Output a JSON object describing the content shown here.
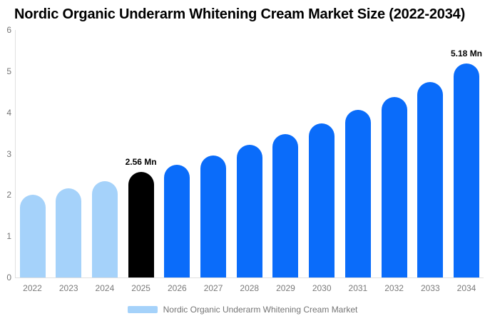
{
  "title": "Nordic Organic Underarm Whitening Cream Market Size (2022-2034)",
  "legend": {
    "label": "Nordic Organic Underarm Whitening Cream Market"
  },
  "colors": {
    "historical": "#A5D2FA",
    "base_year": "#000000",
    "forecast": "#0A6CFA",
    "axis_line": "#E0E0E0",
    "tick_text": "#757575",
    "annotation_text": "#000000",
    "title_text": "#000000",
    "background": "#FFFFFF"
  },
  "chart_data": {
    "type": "bar",
    "title": "Nordic Organic Underarm Whitening Cream Market Size (2022-2034)",
    "unit": "Mn",
    "categories": [
      "2022",
      "2023",
      "2024",
      "2025",
      "2026",
      "2027",
      "2028",
      "2029",
      "2030",
      "2031",
      "2032",
      "2033",
      "2034"
    ],
    "values": [
      2.0,
      2.17,
      2.33,
      2.56,
      2.73,
      2.96,
      3.21,
      3.47,
      3.74,
      4.06,
      4.38,
      4.74,
      5.18
    ],
    "roles": [
      "historical",
      "historical",
      "historical",
      "base_year",
      "forecast",
      "forecast",
      "forecast",
      "forecast",
      "forecast",
      "forecast",
      "forecast",
      "forecast",
      "forecast"
    ],
    "annotations": [
      {
        "category": "2025",
        "text": "2.56 Mn"
      },
      {
        "category": "2034",
        "text": "5.18 Mn"
      }
    ],
    "xlabel": "",
    "ylabel": "",
    "ylim": [
      0,
      6
    ],
    "yticks": [
      0,
      1,
      2,
      3,
      4,
      5,
      6
    ],
    "grid": false,
    "legend_position": "bottom",
    "legend_entries": [
      "Nordic Organic Underarm Whitening Cream Market"
    ]
  }
}
